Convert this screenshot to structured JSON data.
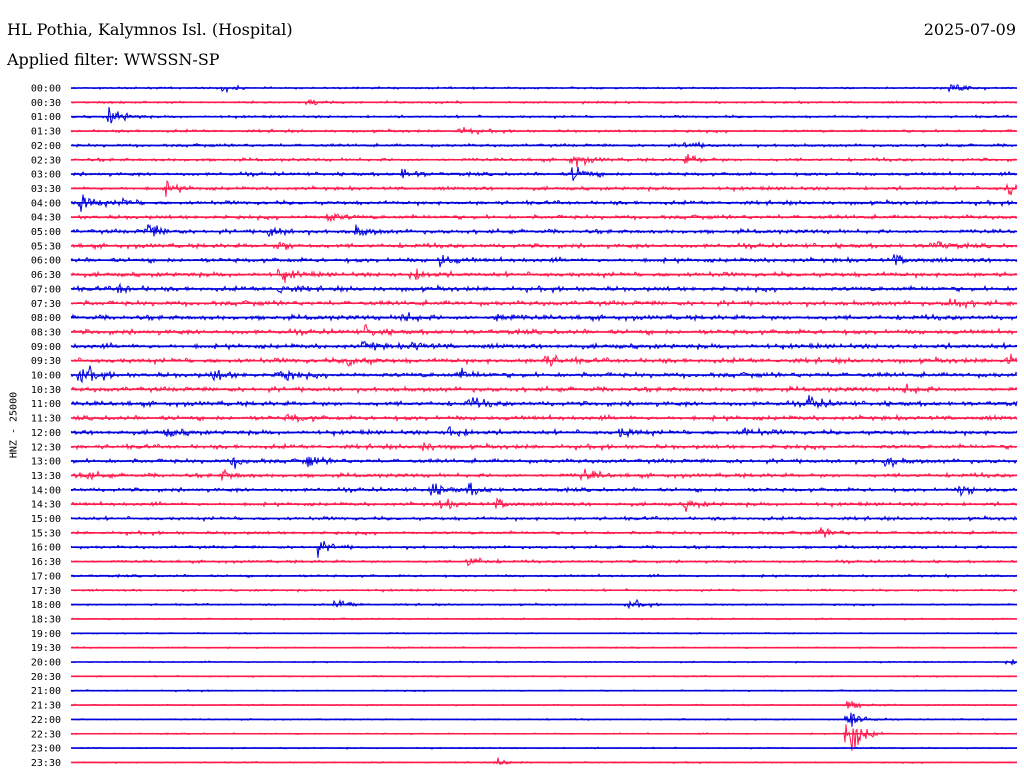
{
  "header": {
    "station": "HL Pothia, Kalymnos Isl. (Hospital)",
    "date": "2025-07-09",
    "filter": "Applied filter: WWSSN-SP"
  },
  "chart_data": {
    "type": "line",
    "title": "HL Pothia, Kalymnos Isl. (Hospital)",
    "date": "2025-07-09",
    "filter": "Applied filter: WWSSN-SP",
    "ylabel": "HNZ - 25000",
    "colors": [
      "#0000dd",
      "#ff1a4d"
    ],
    "grid": false,
    "rows": [
      {
        "time": "00:00",
        "events": [
          {
            "t": 0.16,
            "a": 1.0
          },
          {
            "t": 0.93,
            "a": 2.2
          }
        ]
      },
      {
        "time": "00:30",
        "events": [
          {
            "t": 0.25,
            "a": 0.6
          }
        ]
      },
      {
        "time": "01:00",
        "events": [
          {
            "t": 0.04,
            "a": 2.0
          }
        ]
      },
      {
        "time": "01:30",
        "events": [
          {
            "t": 0.41,
            "a": 1.0
          }
        ]
      },
      {
        "time": "02:00",
        "events": [
          {
            "t": 0.65,
            "a": 0.8
          }
        ]
      },
      {
        "time": "02:30",
        "events": [
          {
            "t": 0.53,
            "a": 1.5
          },
          {
            "t": 0.65,
            "a": 1.2
          }
        ]
      },
      {
        "time": "03:00",
        "events": [
          {
            "t": 0.35,
            "a": 1.2
          },
          {
            "t": 0.53,
            "a": 1.8
          }
        ]
      },
      {
        "time": "03:30",
        "events": [
          {
            "t": 0.1,
            "a": 1.2
          },
          {
            "t": 0.99,
            "a": 1.8
          }
        ]
      },
      {
        "time": "04:00",
        "events": [
          {
            "t": 0.01,
            "a": 2.0
          },
          {
            "t": 0.05,
            "a": 1.0
          }
        ]
      },
      {
        "time": "04:30",
        "events": [
          {
            "t": 0.27,
            "a": 1.2
          }
        ]
      },
      {
        "time": "05:00",
        "events": [
          {
            "t": 0.08,
            "a": 1.8
          },
          {
            "t": 0.21,
            "a": 1.3
          },
          {
            "t": 0.3,
            "a": 1.3
          }
        ]
      },
      {
        "time": "05:30",
        "events": [
          {
            "t": 0.22,
            "a": 1.0
          },
          {
            "t": 0.91,
            "a": 1.2
          }
        ]
      },
      {
        "time": "06:00",
        "events": [
          {
            "t": 0.39,
            "a": 1.2
          },
          {
            "t": 0.87,
            "a": 1.2
          }
        ]
      },
      {
        "time": "06:30",
        "events": [
          {
            "t": 0.22,
            "a": 1.5
          },
          {
            "t": 0.36,
            "a": 1.5
          }
        ]
      },
      {
        "time": "07:00",
        "events": [
          {
            "t": 0.05,
            "a": 1.0
          },
          {
            "t": 0.22,
            "a": 1.2
          }
        ]
      },
      {
        "time": "07:30",
        "events": [
          {
            "t": 0.93,
            "a": 1.5
          }
        ]
      },
      {
        "time": "08:00",
        "events": [
          {
            "t": 0.35,
            "a": 1.2
          },
          {
            "t": 0.45,
            "a": 1.0
          }
        ]
      },
      {
        "time": "08:30",
        "events": [
          {
            "t": 0.31,
            "a": 1.0
          }
        ]
      },
      {
        "time": "09:00",
        "events": [
          {
            "t": 0.31,
            "a": 1.0
          },
          {
            "t": 0.36,
            "a": 1.0
          }
        ]
      },
      {
        "time": "09:30",
        "events": [
          {
            "t": 0.29,
            "a": 1.5
          },
          {
            "t": 0.5,
            "a": 1.5
          },
          {
            "t": 0.99,
            "a": 1.5
          }
        ]
      },
      {
        "time": "10:00",
        "events": [
          {
            "t": 0.01,
            "a": 2.2
          },
          {
            "t": 0.15,
            "a": 1.2
          },
          {
            "t": 0.22,
            "a": 1.5
          },
          {
            "t": 0.41,
            "a": 1.0
          }
        ]
      },
      {
        "time": "10:30",
        "events": [
          {
            "t": 0.88,
            "a": 1.0
          }
        ]
      },
      {
        "time": "11:00",
        "events": [
          {
            "t": 0.42,
            "a": 1.2
          },
          {
            "t": 0.78,
            "a": 1.5
          }
        ]
      },
      {
        "time": "11:30",
        "events": [
          {
            "t": 0.23,
            "a": 1.0
          }
        ]
      },
      {
        "time": "12:00",
        "events": [
          {
            "t": 0.1,
            "a": 1.0
          },
          {
            "t": 0.4,
            "a": 1.5
          },
          {
            "t": 0.58,
            "a": 1.0
          },
          {
            "t": 0.71,
            "a": 1.0
          }
        ]
      },
      {
        "time": "12:30",
        "events": [
          {
            "t": 0.37,
            "a": 1.0
          }
        ]
      },
      {
        "time": "13:00",
        "events": [
          {
            "t": 0.17,
            "a": 1.0
          },
          {
            "t": 0.25,
            "a": 1.2
          },
          {
            "t": 0.86,
            "a": 1.2
          }
        ]
      },
      {
        "time": "13:30",
        "events": [
          {
            "t": 0.01,
            "a": 1.0
          },
          {
            "t": 0.16,
            "a": 1.0
          },
          {
            "t": 0.54,
            "a": 1.2
          }
        ]
      },
      {
        "time": "14:00",
        "events": [
          {
            "t": 0.38,
            "a": 1.5
          },
          {
            "t": 0.42,
            "a": 1.2
          },
          {
            "t": 0.94,
            "a": 1.2
          }
        ]
      },
      {
        "time": "14:30",
        "events": [
          {
            "t": 0.39,
            "a": 1.2
          },
          {
            "t": 0.45,
            "a": 1.2
          },
          {
            "t": 0.65,
            "a": 1.0
          }
        ]
      },
      {
        "time": "15:00",
        "events": []
      },
      {
        "time": "15:30",
        "events": [
          {
            "t": 0.79,
            "a": 1.2
          }
        ]
      },
      {
        "time": "16:00",
        "events": [
          {
            "t": 0.26,
            "a": 1.8
          }
        ]
      },
      {
        "time": "16:30",
        "events": [
          {
            "t": 0.42,
            "a": 1.2
          }
        ]
      },
      {
        "time": "17:00",
        "events": []
      },
      {
        "time": "17:30",
        "events": []
      },
      {
        "time": "18:00",
        "events": [
          {
            "t": 0.28,
            "a": 1.2
          },
          {
            "t": 0.59,
            "a": 1.0
          }
        ]
      },
      {
        "time": "18:30",
        "events": []
      },
      {
        "time": "19:00",
        "events": []
      },
      {
        "time": "19:30",
        "events": []
      },
      {
        "time": "20:00",
        "events": [
          {
            "t": 0.99,
            "a": 0.8
          }
        ]
      },
      {
        "time": "20:30",
        "events": []
      },
      {
        "time": "21:00",
        "events": []
      },
      {
        "time": "21:30",
        "events": [
          {
            "t": 0.82,
            "a": 1.2
          }
        ]
      },
      {
        "time": "22:00",
        "events": [
          {
            "t": 0.82,
            "a": 2.5
          }
        ]
      },
      {
        "time": "22:30",
        "events": [
          {
            "t": 0.82,
            "a": 5.5
          }
        ]
      },
      {
        "time": "23:00",
        "events": []
      },
      {
        "time": "23:30",
        "events": [
          {
            "t": 0.45,
            "a": 0.8
          }
        ]
      }
    ]
  }
}
